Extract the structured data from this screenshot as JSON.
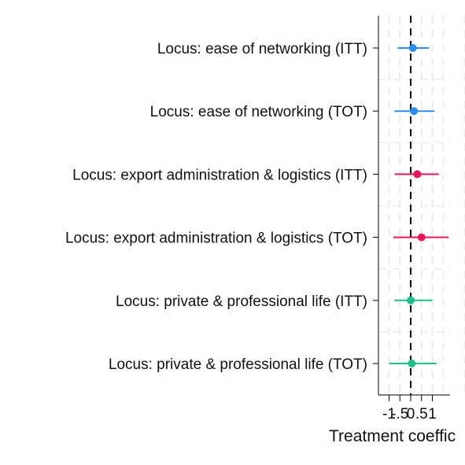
{
  "chart_data": {
    "type": "scatter",
    "orientation": "horizontal-coefficient-plot",
    "xlabel": "Treatment coeffic",
    "x_ticks": [
      {
        "value": -1,
        "label": "-1"
      },
      {
        "value": -0.5,
        "label": "-.5"
      },
      {
        "value": 0,
        "label": "0"
      },
      {
        "value": 0.5,
        "label": ".5"
      },
      {
        "value": 1,
        "label": "1"
      }
    ],
    "xlim": [
      -1.45,
      3.3
    ],
    "reference_line": 0,
    "grid": true,
    "legend": "none",
    "categories": [
      "Locus: ease of networking (ITT)",
      "Locus: ease of networking (TOT)",
      "Locus: export administration & logistics (ITT)",
      "Locus: export administration & logistics (TOT)",
      "Locus: private & professional life (ITT)",
      "Locus: private & professional life (TOT)"
    ],
    "estimates": [
      0.1,
      0.15,
      0.3,
      0.5,
      0.0,
      0.05
    ],
    "ci_low": [
      -0.6,
      -0.75,
      -0.75,
      -0.8,
      -0.75,
      -1.0
    ],
    "ci_high": [
      0.85,
      1.1,
      1.3,
      1.75,
      1.0,
      1.2
    ],
    "colors": [
      "#2b8cf2",
      "#2b8cf2",
      "#e8175d",
      "#e8175d",
      "#1dbf8a",
      "#1dbf8a"
    ]
  }
}
